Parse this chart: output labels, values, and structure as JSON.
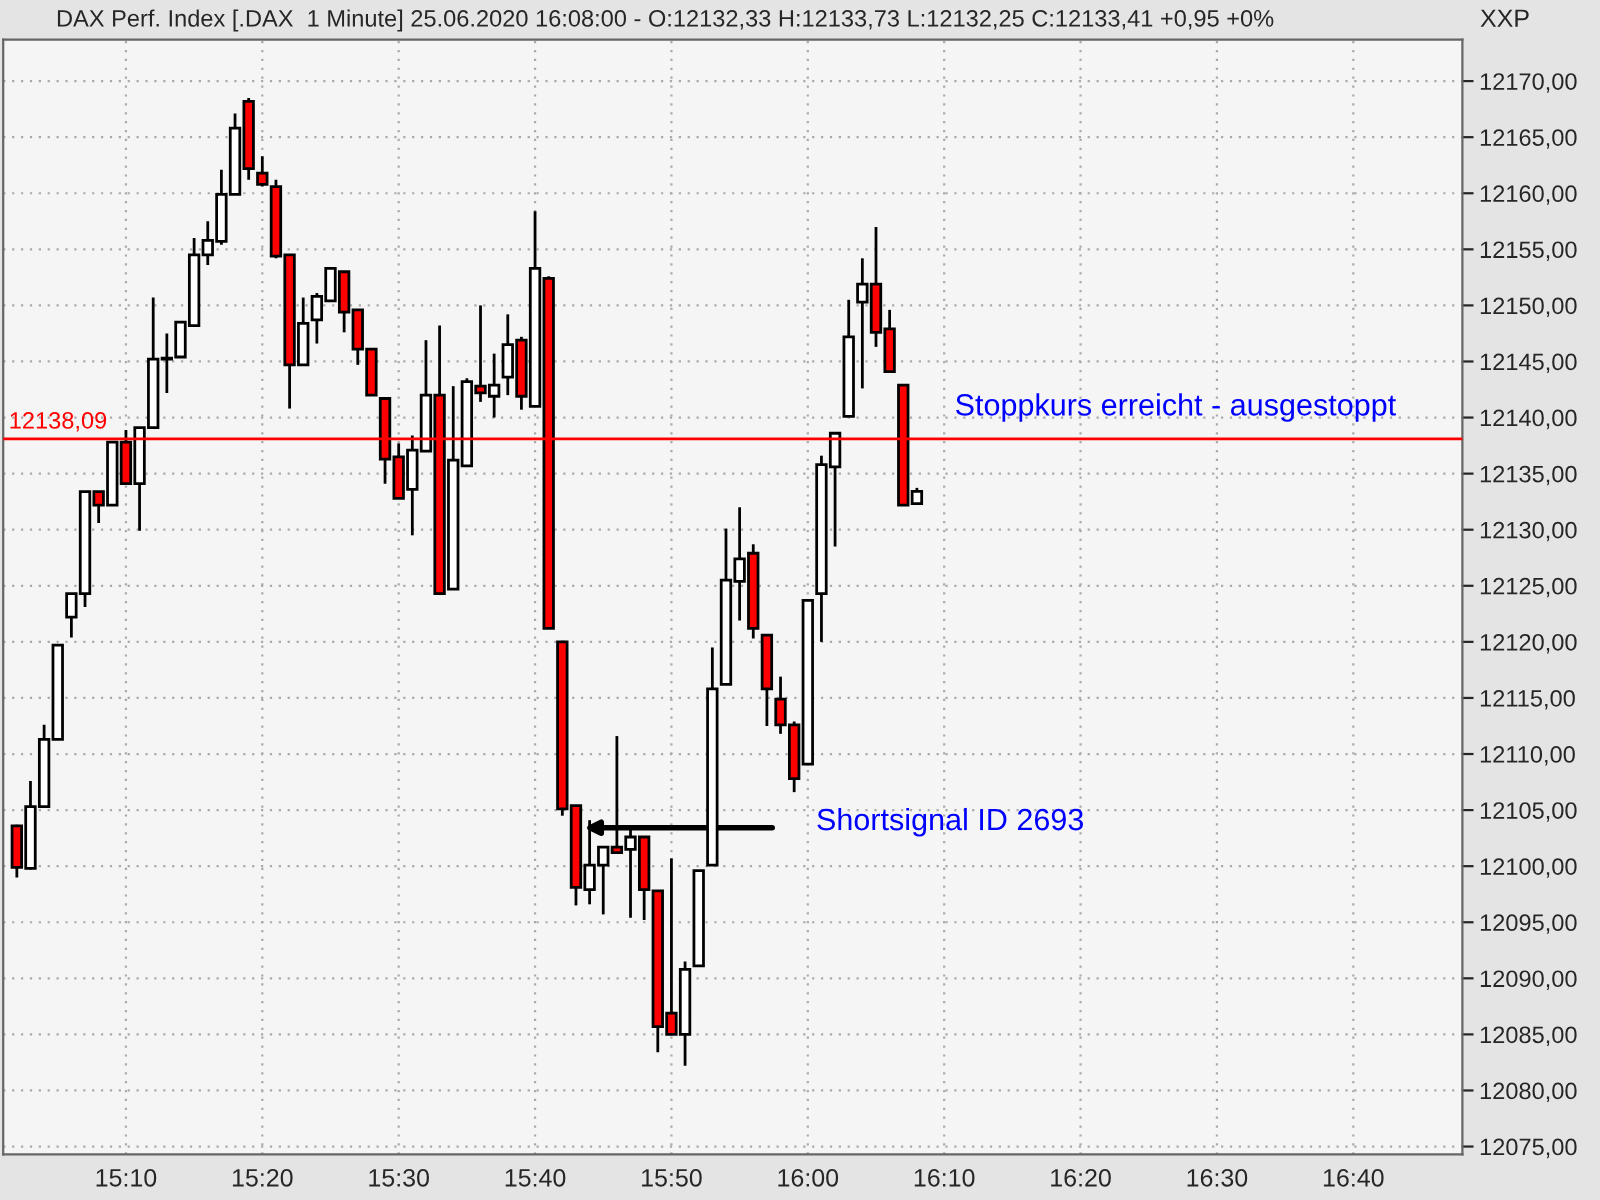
{
  "chart_data": {
    "type": "candlestick",
    "title": "DAX Perf. Index [.DAX  1 Minute] 25.06.2020 16:08:00 - O:12132,33 H:12133,73 L:12132,25 C:12133,41 +0,95 +0%",
    "x": [
      "2020-06-25T15:02",
      "2020-06-25T15:03",
      "2020-06-25T15:04",
      "2020-06-25T15:05",
      "2020-06-25T15:06",
      "2020-06-25T15:07",
      "2020-06-25T15:08",
      "2020-06-25T15:09",
      "2020-06-25T15:10",
      "2020-06-25T15:11",
      "2020-06-25T15:12",
      "2020-06-25T15:13",
      "2020-06-25T15:14",
      "2020-06-25T15:15",
      "2020-06-25T15:16",
      "2020-06-25T15:17",
      "2020-06-25T15:18",
      "2020-06-25T15:19",
      "2020-06-25T15:20",
      "2020-06-25T15:21",
      "2020-06-25T15:22",
      "2020-06-25T15:23",
      "2020-06-25T15:24",
      "2020-06-25T15:25",
      "2020-06-25T15:26",
      "2020-06-25T15:27",
      "2020-06-25T15:28",
      "2020-06-25T15:29",
      "2020-06-25T15:30",
      "2020-06-25T15:31",
      "2020-06-25T15:32",
      "2020-06-25T15:33",
      "2020-06-25T15:34",
      "2020-06-25T15:35",
      "2020-06-25T15:36",
      "2020-06-25T15:37",
      "2020-06-25T15:38",
      "2020-06-25T15:39",
      "2020-06-25T15:40",
      "2020-06-25T15:41",
      "2020-06-25T15:42",
      "2020-06-25T15:43",
      "2020-06-25T15:44",
      "2020-06-25T15:45",
      "2020-06-25T15:46",
      "2020-06-25T15:47",
      "2020-06-25T15:48",
      "2020-06-25T15:49",
      "2020-06-25T15:50",
      "2020-06-25T15:51",
      "2020-06-25T15:52",
      "2020-06-25T15:53",
      "2020-06-25T15:54",
      "2020-06-25T15:55",
      "2020-06-25T15:56",
      "2020-06-25T15:57",
      "2020-06-25T15:58",
      "2020-06-25T15:59",
      "2020-06-25T16:00",
      "2020-06-25T16:01",
      "2020-06-25T16:02",
      "2020-06-25T16:03",
      "2020-06-25T16:04",
      "2020-06-25T16:05",
      "2020-06-25T16:06",
      "2020-06-25T16:07",
      "2020-06-25T16:08"
    ],
    "ohlc": [
      [
        12103.6,
        12103.7,
        12099.0,
        12099.9
      ],
      [
        12099.8,
        12107.6,
        12099.7,
        12105.3
      ],
      [
        12105.3,
        12112.6,
        12105.3,
        12111.3
      ],
      [
        12111.3,
        12119.7,
        12111.3,
        12119.7
      ],
      [
        12122.2,
        12124.3,
        12120.4,
        12124.3
      ],
      [
        12124.3,
        12133.4,
        12123.1,
        12133.4
      ],
      [
        12133.4,
        12133.4,
        12130.6,
        12132.2
      ],
      [
        12132.2,
        12137.8,
        12132.2,
        12137.8
      ],
      [
        12137.8,
        12138.9,
        12134.0,
        12134.1
      ],
      [
        12134.1,
        12139.1,
        12129.9,
        12139.1
      ],
      [
        12139.1,
        12150.7,
        12139.1,
        12145.2
      ],
      [
        12145.3,
        12147.5,
        12142.2,
        12145.2
      ],
      [
        12145.4,
        12148.5,
        12145.4,
        12148.5
      ],
      [
        12148.2,
        12156.0,
        12148.1,
        12154.5
      ],
      [
        12154.5,
        12157.5,
        12153.6,
        12155.8
      ],
      [
        12155.7,
        12162.1,
        12155.4,
        12159.9
      ],
      [
        12159.9,
        12167.1,
        12159.9,
        12165.8
      ],
      [
        12168.2,
        12168.5,
        12161.2,
        12162.2
      ],
      [
        12161.8,
        12163.3,
        12160.6,
        12160.8
      ],
      [
        12160.6,
        12161.2,
        12154.2,
        12154.4
      ],
      [
        12154.5,
        12154.5,
        12140.8,
        12144.7
      ],
      [
        12144.7,
        12150.7,
        12144.7,
        12148.4
      ],
      [
        12148.7,
        12151.1,
        12146.6,
        12150.8
      ],
      [
        12150.4,
        12153.3,
        12150.4,
        12153.3
      ],
      [
        12153.0,
        12153.0,
        12147.6,
        12149.4
      ],
      [
        12149.6,
        12149.6,
        12144.7,
        12146.1
      ],
      [
        12146.1,
        12146.1,
        12142.0,
        12142.0
      ],
      [
        12141.7,
        12141.7,
        12134.1,
        12136.3
      ],
      [
        12136.5,
        12137.7,
        12132.8,
        12132.8
      ],
      [
        12133.6,
        12138.4,
        12129.5,
        12137.1
      ],
      [
        12137.0,
        12146.9,
        12137.0,
        12142.0
      ],
      [
        12142.0,
        12148.2,
        12124.3,
        12124.3
      ],
      [
        12124.7,
        12142.8,
        12124.7,
        12136.2
      ],
      [
        12135.7,
        12143.5,
        12135.6,
        12143.2
      ],
      [
        12142.8,
        12150.0,
        12141.4,
        12142.2
      ],
      [
        12141.9,
        12145.7,
        12140.0,
        12142.9
      ],
      [
        12143.6,
        12149.2,
        12142.0,
        12146.5
      ],
      [
        12146.9,
        12147.2,
        12140.7,
        12141.9
      ],
      [
        12141.0,
        12158.4,
        12141.0,
        12153.3
      ],
      [
        12152.4,
        12152.6,
        12121.2,
        12121.2
      ],
      [
        12120.0,
        12120.1,
        12104.5,
        12105.1
      ],
      [
        12105.4,
        12105.4,
        12096.5,
        12098.1
      ],
      [
        12097.9,
        12104.1,
        12096.6,
        12100.1
      ],
      [
        12100.1,
        12101.7,
        12095.7,
        12101.7
      ],
      [
        12101.7,
        12111.6,
        12101.2,
        12101.2
      ],
      [
        12101.5,
        12103.5,
        12095.4,
        12102.6
      ],
      [
        12102.6,
        12102.6,
        12095.2,
        12097.9
      ],
      [
        12097.8,
        12097.8,
        12083.4,
        12085.7
      ],
      [
        12086.9,
        12100.7,
        12085.0,
        12085.0
      ],
      [
        12085.0,
        12091.5,
        12082.2,
        12090.8
      ],
      [
        12091.1,
        12099.6,
        12091.1,
        12099.6
      ],
      [
        12100.1,
        12119.5,
        12100.1,
        12115.8
      ],
      [
        12116.2,
        12130.1,
        12116.2,
        12125.5
      ],
      [
        12125.4,
        12132.0,
        12121.9,
        12127.4
      ],
      [
        12127.9,
        12128.7,
        12120.3,
        12121.2
      ],
      [
        12120.6,
        12120.6,
        12112.5,
        12115.8
      ],
      [
        12114.9,
        12116.9,
        12111.8,
        12112.6
      ],
      [
        12112.6,
        12112.9,
        12106.6,
        12107.8
      ],
      [
        12109.1,
        12123.7,
        12109.0,
        12123.7
      ],
      [
        12124.3,
        12136.6,
        12120.0,
        12135.8
      ],
      [
        12135.6,
        12138.7,
        12128.5,
        12138.6
      ],
      [
        12140.1,
        12150.5,
        12140.1,
        12147.2
      ],
      [
        12150.3,
        12154.2,
        12142.6,
        12151.9
      ],
      [
        12151.9,
        12157.0,
        12146.3,
        12147.6
      ],
      [
        12147.9,
        12149.6,
        12144.1,
        12144.1
      ],
      [
        12142.9,
        12142.9,
        12132.2,
        12132.2
      ],
      [
        12132.33,
        12133.73,
        12132.25,
        12133.41
      ]
    ],
    "colors": [
      "#ff0000",
      "#ffffff",
      "#ffffff",
      "#ffffff",
      "#ffffff",
      "#ffffff",
      "#ff0000",
      "#ffffff",
      "#ff0000",
      "#ffffff",
      "#ffffff",
      "#ffffff",
      "#ffffff",
      "#ffffff",
      "#ffffff",
      "#ffffff",
      "#ffffff",
      "#ff0000",
      "#ff0000",
      "#ff0000",
      "#ff0000",
      "#ffffff",
      "#ffffff",
      "#ffffff",
      "#ff0000",
      "#ff0000",
      "#ff0000",
      "#ff0000",
      "#ff0000",
      "#ffffff",
      "#ffffff",
      "#ff0000",
      "#ffffff",
      "#ffffff",
      "#ff0000",
      "#ffffff",
      "#ffffff",
      "#ff0000",
      "#ffffff",
      "#ff0000",
      "#ff0000",
      "#ff0000",
      "#ffffff",
      "#ffffff",
      "#ff0000",
      "#ffffff",
      "#ff0000",
      "#ff0000",
      "#ff0000",
      "#ffffff",
      "#ffffff",
      "#ffffff",
      "#ffffff",
      "#ffffff",
      "#ff0000",
      "#ff0000",
      "#ff0000",
      "#ff0000",
      "#ffffff",
      "#ffffff",
      "#ffffff",
      "#ffffff",
      "#ffffff",
      "#ff0000",
      "#ff0000",
      "#ff0000",
      "#ffffff"
    ],
    "xlim": [
      "2020-06-25T15:01",
      "2020-06-25T16:48"
    ],
    "xticks": [
      {
        "value": "2020-06-25T15:10",
        "label": "15:10"
      },
      {
        "value": "2020-06-25T15:20",
        "label": "15:20"
      },
      {
        "value": "2020-06-25T15:30",
        "label": "15:30"
      },
      {
        "value": "2020-06-25T15:40",
        "label": "15:40"
      },
      {
        "value": "2020-06-25T15:50",
        "label": "15:50"
      },
      {
        "value": "2020-06-25T16:00",
        "label": "16:00"
      },
      {
        "value": "2020-06-25T16:10",
        "label": "16:10"
      },
      {
        "value": "2020-06-25T16:20",
        "label": "16:20"
      },
      {
        "value": "2020-06-25T16:30",
        "label": "16:30"
      },
      {
        "value": "2020-06-25T16:40",
        "label": "16:40"
      }
    ],
    "ylim": [
      12074.3,
      12173.7
    ],
    "yticks": [
      {
        "value": 12075,
        "label": "12075,00"
      },
      {
        "value": 12080,
        "label": "12080,00"
      },
      {
        "value": 12085,
        "label": "12085,00"
      },
      {
        "value": 12090,
        "label": "12090,00"
      },
      {
        "value": 12095,
        "label": "12095,00"
      },
      {
        "value": 12100,
        "label": "12100,00"
      },
      {
        "value": 12105,
        "label": "12105,00"
      },
      {
        "value": 12110,
        "label": "12110,00"
      },
      {
        "value": 12115,
        "label": "12115,00"
      },
      {
        "value": 12120,
        "label": "12120,00"
      },
      {
        "value": 12125,
        "label": "12125,00"
      },
      {
        "value": 12130,
        "label": "12130,00"
      },
      {
        "value": 12135,
        "label": "12135,00"
      },
      {
        "value": 12140,
        "label": "12140,00"
      },
      {
        "value": 12145,
        "label": "12145,00"
      },
      {
        "value": 12150,
        "label": "12150,00"
      },
      {
        "value": 12155,
        "label": "12155,00"
      },
      {
        "value": 12160,
        "label": "12160,00"
      },
      {
        "value": 12165,
        "label": "12165,00"
      },
      {
        "value": 12170,
        "label": "12170,00"
      }
    ],
    "ref_lines": [
      {
        "axis": "y",
        "value": 12138.09,
        "label": "12138,09",
        "color": "#ff0000"
      }
    ],
    "annotations": [
      "Stoppkurs erreicht - ausgestoppt",
      "Shortsignal ID 2693",
      "XXP"
    ],
    "grid": true,
    "legend": false
  }
}
